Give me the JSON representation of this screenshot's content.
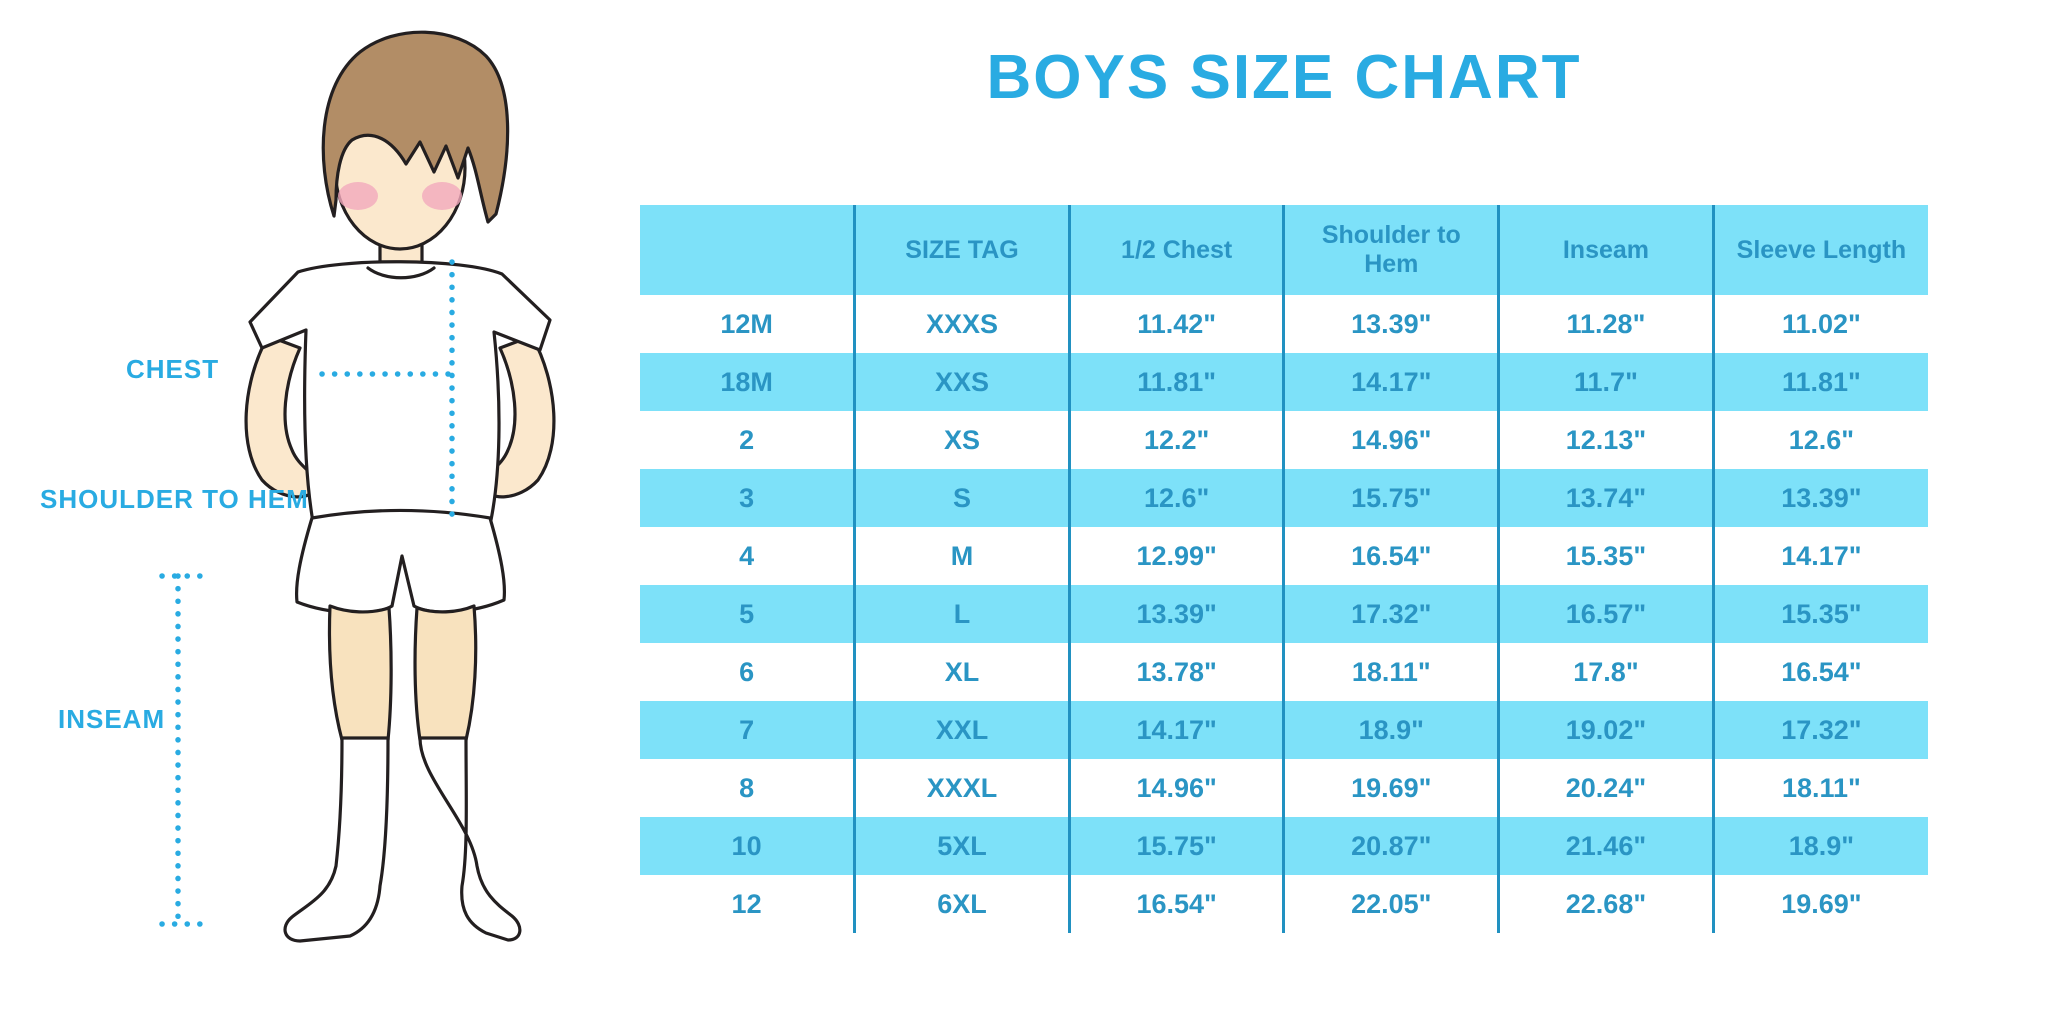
{
  "title": "BOYS SIZE CHART",
  "illustration": {
    "description": "cartoon boy in white t-shirt, shorts and knee socks with measurement guides",
    "chest_label": "CHEST",
    "shoulder_to_hem_label": "SHOULDER TO HEM",
    "inseam_label": "INSEAM"
  },
  "colors": {
    "title_blue": "#29abe2",
    "label_blue": "#29abe2",
    "table_text": "#2a95c4",
    "table_line": "#2191c1",
    "row_highlight": "#7de1f9",
    "skin": "#fbe8cd",
    "skin_leg": "#f8e2be",
    "hair": "#b28d66",
    "blush": "#f2a9bd"
  },
  "chart_data": {
    "type": "table",
    "title": "BOYS SIZE CHART",
    "columns": [
      "",
      "SIZE TAG",
      "1/2 Chest",
      "Shoulder to Hem",
      "Inseam",
      "Sleeve Length"
    ],
    "rows": [
      [
        "12M",
        "XXXS",
        "11.42\"",
        "13.39\"",
        "11.28\"",
        "11.02\""
      ],
      [
        "18M",
        "XXS",
        "11.81\"",
        "14.17\"",
        "11.7\"",
        "11.81\""
      ],
      [
        "2",
        "XS",
        "12.2\"",
        "14.96\"",
        "12.13\"",
        "12.6\""
      ],
      [
        "3",
        "S",
        "12.6\"",
        "15.75\"",
        "13.74\"",
        "13.39\""
      ],
      [
        "4",
        "M",
        "12.99\"",
        "16.54\"",
        "15.35\"",
        "14.17\""
      ],
      [
        "5",
        "L",
        "13.39\"",
        "17.32\"",
        "16.57\"",
        "15.35\""
      ],
      [
        "6",
        "XL",
        "13.78\"",
        "18.11\"",
        "17.8\"",
        "16.54\""
      ],
      [
        "7",
        "XXL",
        "14.17\"",
        "18.9\"",
        "19.02\"",
        "17.32\""
      ],
      [
        "8",
        "XXXL",
        "14.96\"",
        "19.69\"",
        "20.24\"",
        "18.11\""
      ],
      [
        "10",
        "5XL",
        "15.75\"",
        "20.87\"",
        "21.46\"",
        "18.9\""
      ],
      [
        "12",
        "6XL",
        "16.54\"",
        "22.05\"",
        "22.68\"",
        "19.69\""
      ]
    ],
    "row_striping": "alternating white and light cyan, header light cyan",
    "units": "inches"
  }
}
